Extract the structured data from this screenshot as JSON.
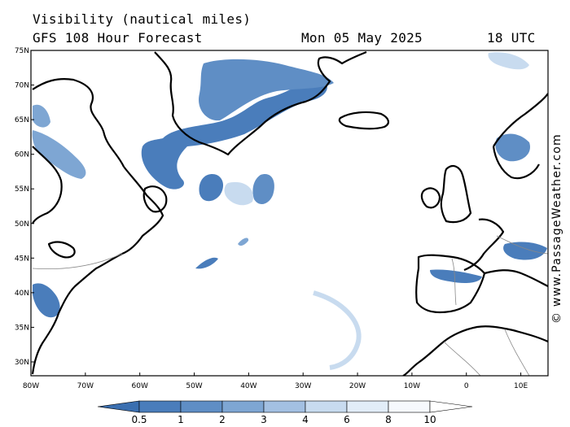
{
  "header": {
    "title": "Visibility (nautical miles)",
    "subtitle": "GFS 108 Hour Forecast",
    "date": "Mon 05 May 2025",
    "time": "18 UTC"
  },
  "map": {
    "lat_labels": [
      "75N",
      "70N",
      "65N",
      "60N",
      "55N",
      "50N",
      "45N",
      "40N",
      "35N",
      "30N"
    ],
    "lon_labels": [
      "80W",
      "70W",
      "60W",
      "50W",
      "40W",
      "30W",
      "20W",
      "10W",
      "0",
      "10E"
    ],
    "extent": {
      "lon_min": -80,
      "lon_max": 15,
      "lat_min": 28,
      "lat_max": 75
    }
  },
  "legend": {
    "levels": [
      "0.5",
      "1",
      "2",
      "3",
      "4",
      "6",
      "8",
      "10"
    ],
    "colors": [
      "#3b6fb0",
      "#4a7dbb",
      "#5f8ec5",
      "#7ea6d3",
      "#a3c0e2",
      "#c8dbef",
      "#e2edf8",
      "#f6f9fd",
      "#ffffff"
    ]
  },
  "credit": "© www.PassageWeather.com"
}
